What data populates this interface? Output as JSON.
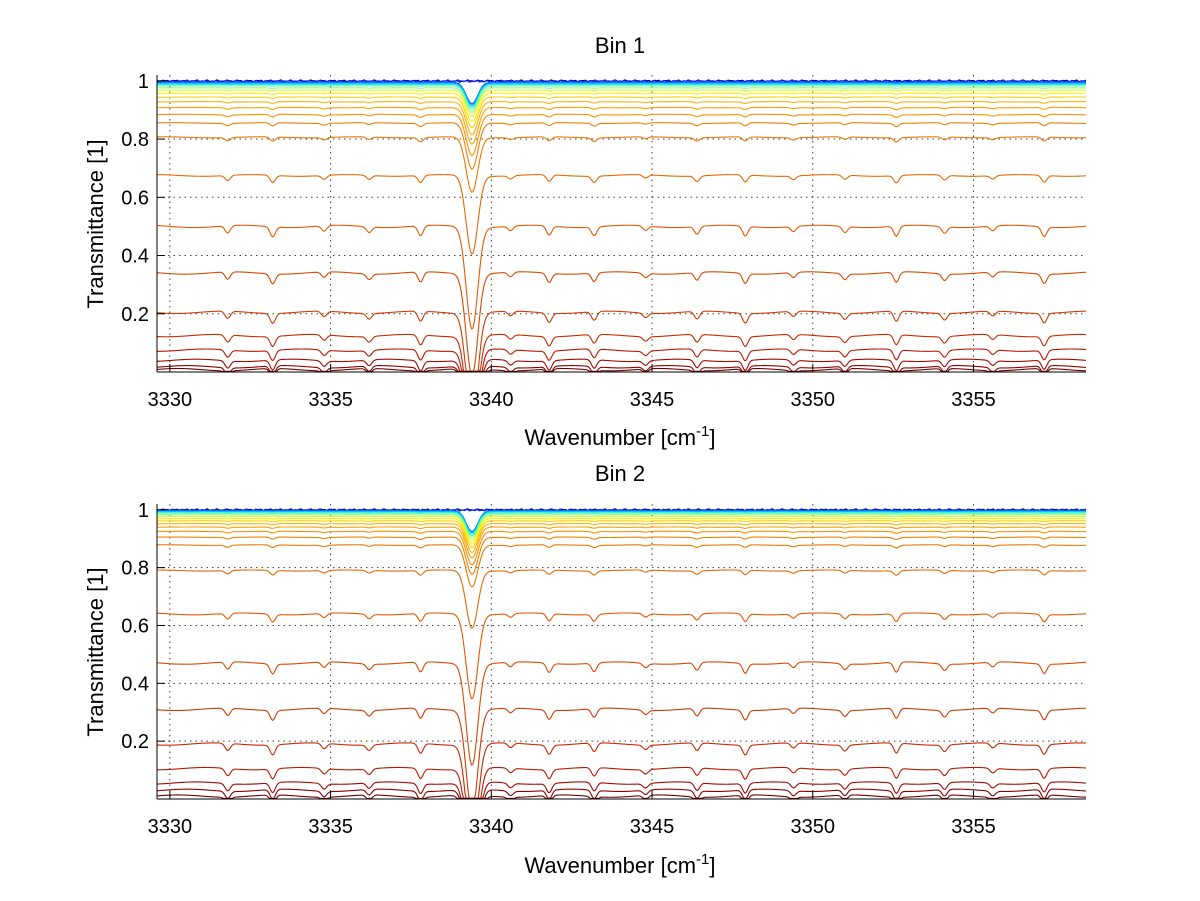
{
  "chart_data": [
    {
      "type": "line",
      "title": "Bin 1",
      "xlabel": "Wavenumber [cm",
      "xlabel_sup": "-1",
      "xlabel_end": "]",
      "ylabel": "Transmittance [1]",
      "xlim": [
        3329.6,
        3358.5
      ],
      "ylim": [
        0,
        1.02
      ],
      "grid": true,
      "x_ticks": [
        3330,
        3335,
        3340,
        3345,
        3350,
        3355
      ],
      "y_ticks": [
        0.2,
        0.4,
        0.6,
        0.8,
        1
      ],
      "lines": {
        "baselines": [
          1.0,
          0.998,
          0.995,
          0.992,
          0.988,
          0.983,
          0.976,
          0.968,
          0.957,
          0.944,
          0.928,
          0.908,
          0.884,
          0.855,
          0.806,
          0.675,
          0.5,
          0.34,
          0.205,
          0.125,
          0.075,
          0.04,
          0.018,
          0.008
        ],
        "colors": [
          "#00008f",
          "#0020ff",
          "#0060ff",
          "#00a0ff",
          "#10e0ef",
          "#50ffaf",
          "#90ff6f",
          "#d0ff30",
          "#ffef00",
          "#ffd000",
          "#ffb000",
          "#ff9f00",
          "#ff9000",
          "#f08000",
          "#e87800",
          "#e66800",
          "#e85800",
          "#d84a00",
          "#d03a00",
          "#c82800",
          "#b81800",
          "#a00800",
          "#880000",
          "#6a0000"
        ],
        "x_start": 3329.6,
        "x_end": 3358.5
      }
    },
    {
      "type": "line",
      "title": "Bin 2",
      "xlabel": "Wavenumber [cm",
      "xlabel_sup": "-1",
      "xlabel_end": "]",
      "ylabel": "Transmittance [1]",
      "xlim": [
        3329.6,
        3358.5
      ],
      "ylim": [
        0,
        1.02
      ],
      "grid": true,
      "x_ticks": [
        3330,
        3335,
        3340,
        3345,
        3350,
        3355
      ],
      "y_ticks": [
        0.2,
        0.4,
        0.6,
        0.8,
        1
      ],
      "lines": {
        "baselines": [
          1.0,
          0.999,
          0.997,
          0.995,
          0.992,
          0.988,
          0.983,
          0.977,
          0.97,
          0.962,
          0.952,
          0.94,
          0.925,
          0.905,
          0.878,
          0.79,
          0.64,
          0.47,
          0.31,
          0.19,
          0.105,
          0.055,
          0.03,
          0.01
        ],
        "colors": [
          "#00008f",
          "#0020ff",
          "#0060ff",
          "#00a0ff",
          "#10e0ef",
          "#50ffaf",
          "#90ff6f",
          "#d0ff30",
          "#ffef00",
          "#ffd000",
          "#ffb000",
          "#ff9f00",
          "#ff9000",
          "#f08000",
          "#e87800",
          "#e66800",
          "#e85800",
          "#d84a00",
          "#d03a00",
          "#c82800",
          "#b81800",
          "#a00800",
          "#880000",
          "#6a0000"
        ],
        "x_start": 3329.6,
        "x_end": 3358.5
      }
    }
  ]
}
